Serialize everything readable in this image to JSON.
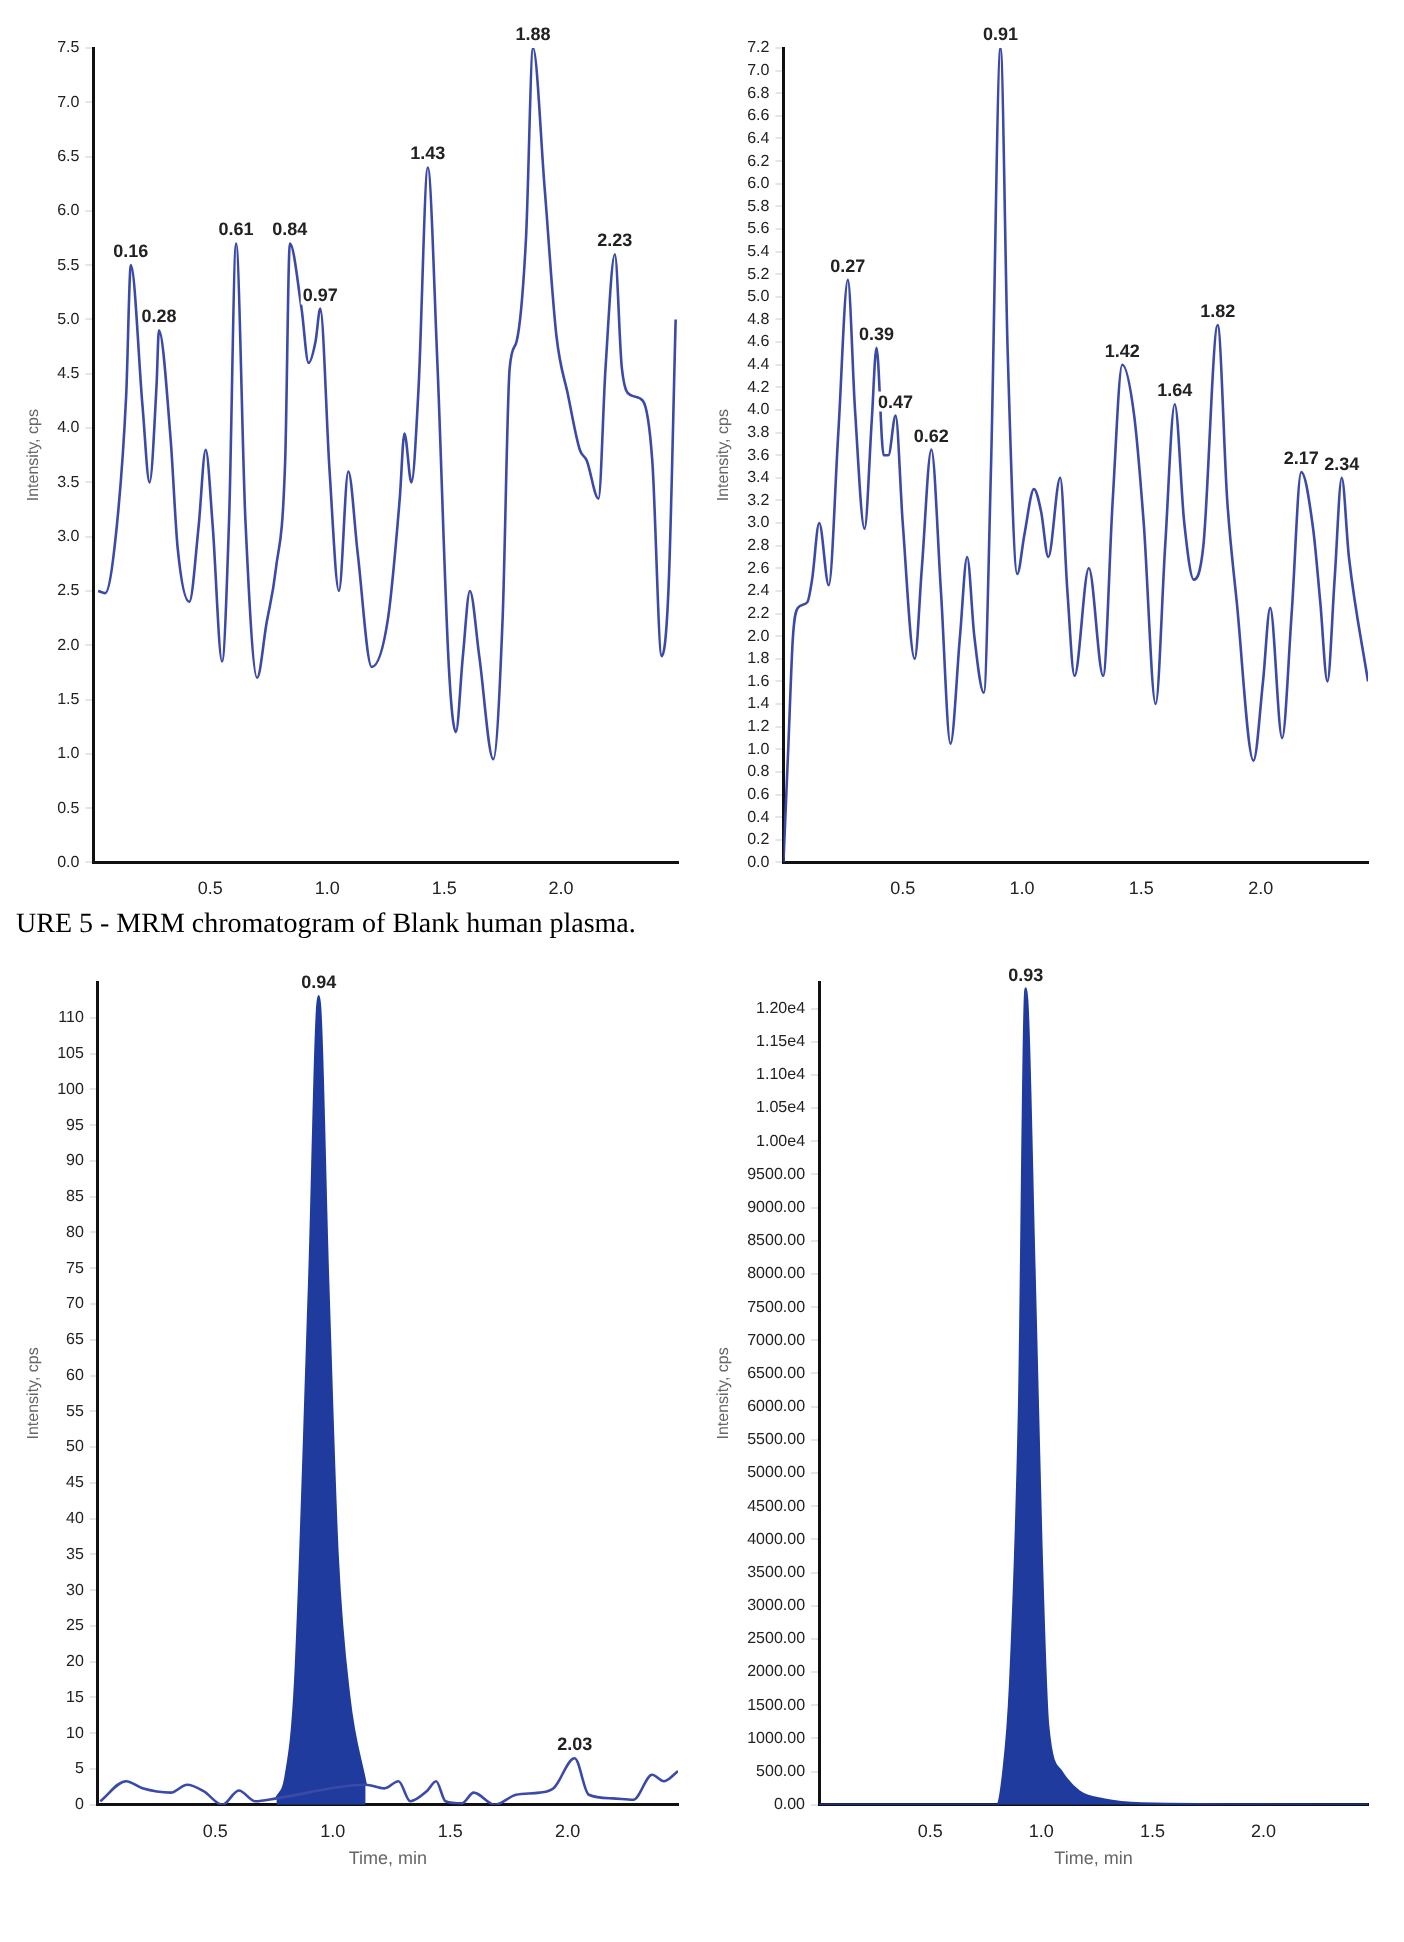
{
  "chart_data": [
    {
      "type": "line",
      "ylabel": "Intensity, cps",
      "xlim": [
        0,
        2.5
      ],
      "ylim": [
        0,
        7.5
      ],
      "grid": false,
      "legend": false,
      "marker": "none",
      "xticks": [
        {
          "value": 0.5,
          "label": "0.5"
        },
        {
          "value": 1,
          "label": "1.0"
        },
        {
          "value": 1.5,
          "label": "1.5"
        },
        {
          "value": 2,
          "label": "2.0"
        }
      ],
      "yticks": [
        {
          "value": 0,
          "label": "0.0"
        },
        {
          "value": 0.5,
          "label": "0.5"
        },
        {
          "value": 1,
          "label": "1.0"
        },
        {
          "value": 1.5,
          "label": "1.5"
        },
        {
          "value": 2,
          "label": "2.0"
        },
        {
          "value": 2.5,
          "label": "2.5"
        },
        {
          "value": 3,
          "label": "3.0"
        },
        {
          "value": 3.5,
          "label": "3.5"
        },
        {
          "value": 4,
          "label": "4.0"
        },
        {
          "value": 4.5,
          "label": "4.5"
        },
        {
          "value": 5,
          "label": "5.0"
        },
        {
          "value": 5.5,
          "label": "5.5"
        },
        {
          "value": 6,
          "label": "6.0"
        },
        {
          "value": 6.5,
          "label": "6.5"
        },
        {
          "value": 7,
          "label": "7.0"
        },
        {
          "value": 7.5,
          "label": "7.5"
        }
      ],
      "series": [
        {
          "color": "#3b4aa8",
          "x": [
            0.02,
            0.05,
            0.1,
            0.14,
            0.16,
            0.21,
            0.24,
            0.27,
            0.28,
            0.33,
            0.36,
            0.41,
            0.45,
            0.48,
            0.51,
            0.55,
            0.58,
            0.61,
            0.65,
            0.7,
            0.74,
            0.78,
            0.82,
            0.84,
            0.89,
            0.92,
            0.95,
            0.97,
            1.01,
            1.05,
            1.09,
            1.13,
            1.19,
            1.26,
            1.31,
            1.33,
            1.36,
            1.39,
            1.43,
            1.47,
            1.52,
            1.55,
            1.58,
            1.61,
            1.65,
            1.71,
            1.75,
            1.78,
            1.81,
            1.85,
            1.88,
            1.93,
            1.98,
            2.03,
            2.08,
            2.11,
            2.16,
            2.19,
            2.23,
            2.26,
            2.3,
            2.35,
            2.39,
            2.43,
            2.46,
            2.49
          ],
          "values": [
            2.5,
            2.48,
            3.1,
            4.3,
            5.5,
            4.2,
            3.5,
            4.4,
            4.9,
            3.9,
            2.9,
            2.4,
            3.1,
            3.8,
            3.1,
            1.85,
            3.15,
            5.7,
            3.15,
            1.7,
            2.2,
            2.7,
            3.7,
            5.7,
            5.1,
            4.6,
            4.8,
            5.1,
            3.6,
            2.5,
            3.6,
            2.85,
            1.8,
            2.25,
            3.35,
            3.95,
            3.5,
            4.35,
            6.4,
            4.65,
            1.8,
            1.2,
            1.9,
            2.5,
            1.9,
            0.95,
            2.25,
            4.55,
            4.8,
            5.75,
            7.5,
            6.2,
            4.85,
            4.3,
            3.8,
            3.7,
            3.35,
            4.55,
            5.6,
            4.55,
            4.3,
            4.25,
            3.7,
            1.9,
            2.55,
            5.0
          ]
        }
      ],
      "annotations": [
        {
          "text": "0.16",
          "x": 0.16,
          "y": 5.5
        },
        {
          "text": "0.28",
          "x": 0.28,
          "y": 4.9
        },
        {
          "text": "0.61",
          "x": 0.61,
          "y": 5.7
        },
        {
          "text": "0.84",
          "x": 0.84,
          "y": 5.7
        },
        {
          "text": "0.97",
          "x": 0.97,
          "y": 5.1
        },
        {
          "text": "1.43",
          "x": 1.43,
          "y": 6.4
        },
        {
          "text": "1.88",
          "x": 1.88,
          "y": 7.5
        },
        {
          "text": "2.23",
          "x": 2.23,
          "y": 5.6
        },
        "URE 5 - MRM chromatogram of Blank human plasma."
      ]
    },
    {
      "type": "line",
      "ylabel": "Intensity, cps",
      "xlim": [
        0,
        2.45
      ],
      "ylim": [
        0,
        7.2
      ],
      "grid": false,
      "legend": false,
      "marker": "none",
      "xticks": [
        {
          "value": 0.5,
          "label": "0.5"
        },
        {
          "value": 1,
          "label": "1.0"
        },
        {
          "value": 1.5,
          "label": "1.5"
        },
        {
          "value": 2,
          "label": "2.0"
        }
      ],
      "yticks": [
        {
          "value": 0,
          "label": "0.0"
        },
        {
          "value": 0.2,
          "label": "0.2"
        },
        {
          "value": 0.4,
          "label": "0.4"
        },
        {
          "value": 0.6,
          "label": "0.6"
        },
        {
          "value": 0.8,
          "label": "0.8"
        },
        {
          "value": 1,
          "label": "1.0"
        },
        {
          "value": 1.2,
          "label": "1.2"
        },
        {
          "value": 1.4,
          "label": "1.4"
        },
        {
          "value": 1.6,
          "label": "1.6"
        },
        {
          "value": 1.8,
          "label": "1.8"
        },
        {
          "value": 2,
          "label": "2.0"
        },
        {
          "value": 2.2,
          "label": "2.2"
        },
        {
          "value": 2.4,
          "label": "2.4"
        },
        {
          "value": 2.6,
          "label": "2.6"
        },
        {
          "value": 2.8,
          "label": "2.8"
        },
        {
          "value": 3,
          "label": "3.0"
        },
        {
          "value": 3.2,
          "label": "3.2"
        },
        {
          "value": 3.4,
          "label": "3.4"
        },
        {
          "value": 3.6,
          "label": "3.6"
        },
        {
          "value": 3.8,
          "label": "3.8"
        },
        {
          "value": 4,
          "label": "4.0"
        },
        {
          "value": 4.2,
          "label": "4.2"
        },
        {
          "value": 4.4,
          "label": "4.4"
        },
        {
          "value": 4.6,
          "label": "4.6"
        },
        {
          "value": 4.8,
          "label": "4.8"
        },
        {
          "value": 5,
          "label": "5.0"
        },
        {
          "value": 5.2,
          "label": "5.2"
        },
        {
          "value": 5.4,
          "label": "5.4"
        },
        {
          "value": 5.6,
          "label": "5.6"
        },
        {
          "value": 5.8,
          "label": "5.8"
        },
        {
          "value": 6,
          "label": "6.0"
        },
        {
          "value": 6.2,
          "label": "6.2"
        },
        {
          "value": 6.4,
          "label": "6.4"
        },
        {
          "value": 6.6,
          "label": "6.6"
        },
        {
          "value": 6.8,
          "label": "6.8"
        },
        {
          "value": 7,
          "label": "7.0"
        },
        {
          "value": 7.2,
          "label": "7.2"
        }
      ],
      "series": [
        {
          "color": "#3b4aa8",
          "x": [
            0.0,
            0.02,
            0.04,
            0.06,
            0.1,
            0.12,
            0.15,
            0.19,
            0.23,
            0.27,
            0.3,
            0.34,
            0.37,
            0.39,
            0.42,
            0.44,
            0.47,
            0.5,
            0.55,
            0.58,
            0.62,
            0.66,
            0.7,
            0.74,
            0.77,
            0.8,
            0.84,
            0.87,
            0.91,
            0.94,
            0.98,
            1.01,
            1.05,
            1.08,
            1.11,
            1.16,
            1.19,
            1.22,
            1.28,
            1.34,
            1.38,
            1.42,
            1.47,
            1.51,
            1.56,
            1.6,
            1.64,
            1.68,
            1.72,
            1.76,
            1.82,
            1.86,
            1.9,
            1.97,
            2.01,
            2.04,
            2.09,
            2.13,
            2.17,
            2.22,
            2.25,
            2.28,
            2.31,
            2.34,
            2.37,
            2.45
          ],
          "values": [
            0,
            1.0,
            2.0,
            2.25,
            2.3,
            2.5,
            3.0,
            2.45,
            3.8,
            5.15,
            4.0,
            2.95,
            3.9,
            4.55,
            3.6,
            3.6,
            3.95,
            3.0,
            1.8,
            2.6,
            3.65,
            2.4,
            1.05,
            2.0,
            2.7,
            2.0,
            1.5,
            3.5,
            7.2,
            4.5,
            2.55,
            2.9,
            3.3,
            3.1,
            2.7,
            3.4,
            2.4,
            1.65,
            2.6,
            1.65,
            3.2,
            4.4,
            3.95,
            3.0,
            1.4,
            2.8,
            4.05,
            3.0,
            2.5,
            2.8,
            4.75,
            3.2,
            2.3,
            0.9,
            1.6,
            2.25,
            1.1,
            2.2,
            3.45,
            2.95,
            2.3,
            1.6,
            2.5,
            3.4,
            2.7,
            1.6
          ]
        }
      ],
      "annotations": [
        {
          "text": "0.27",
          "x": 0.27,
          "y": 5.15
        },
        {
          "text": "0.39",
          "x": 0.39,
          "y": 4.55
        },
        {
          "text": "0.47",
          "x": 0.47,
          "y": 3.95
        },
        {
          "text": "0.62",
          "x": 0.62,
          "y": 3.65
        },
        {
          "text": "0.91",
          "x": 0.91,
          "y": 7.2
        },
        {
          "text": "1.42",
          "x": 1.42,
          "y": 4.4
        },
        {
          "text": "1.64",
          "x": 1.64,
          "y": 4.05
        },
        {
          "text": "1.82",
          "x": 1.82,
          "y": 4.75
        },
        {
          "text": "2.17",
          "x": 2.17,
          "y": 3.45
        },
        {
          "text": "2.34",
          "x": 2.34,
          "y": 3.4
        }
      ]
    },
    {
      "type": "line",
      "xlabel": "Time, min",
      "ylabel": "Intensity, cps",
      "xlim": [
        0,
        2.47
      ],
      "ylim": [
        0,
        115
      ],
      "grid": false,
      "legend": false,
      "marker": "none",
      "xticks": [
        {
          "value": 0.5,
          "label": "0.5"
        },
        {
          "value": 1,
          "label": "1.0"
        },
        {
          "value": 1.5,
          "label": "1.5"
        },
        {
          "value": 2,
          "label": "2.0"
        }
      ],
      "yticks": [
        0,
        5,
        10,
        15,
        20,
        25,
        30,
        35,
        40,
        45,
        50,
        55,
        60,
        65,
        70,
        75,
        80,
        85,
        90,
        95,
        100,
        105,
        110
      ],
      "series": [
        {
          "color": "#3b4aa8",
          "x": [
            0.01,
            0.12,
            0.19,
            0.31,
            0.38,
            0.45,
            0.53,
            0.6,
            0.67,
            0.76,
            1.14,
            1.22,
            1.28,
            1.33,
            1.4,
            1.44,
            1.48,
            1.55,
            1.6,
            1.69,
            1.78,
            1.88,
            1.94,
            2.03,
            2.09,
            2.19,
            2.28,
            2.36,
            2.41,
            2.47
          ],
          "values": [
            0.5,
            3.3,
            2.3,
            1.7,
            2.8,
            1.9,
            0,
            2.0,
            0.5,
            0.9,
            2.8,
            2.3,
            3.3,
            0.5,
            1.9,
            3.3,
            0.5,
            0.2,
            1.7,
            0,
            1.4,
            1.7,
            2.3,
            6.5,
            1.4,
            0.9,
            0.7,
            4.2,
            3.3,
            4.7
          ]
        },
        {
          "type": "area",
          "color": "#1f3b9e",
          "x": [
            0.76,
            0.8,
            0.84,
            0.9,
            0.94,
            0.98,
            1.02,
            1.07,
            1.14
          ],
          "values": [
            0.9,
            4,
            17,
            73,
            113,
            73,
            35,
            15,
            2.8
          ]
        }
      ],
      "annotations": [
        {
          "text": "0.94",
          "x": 0.94,
          "y": 113
        },
        {
          "text": "2.03",
          "x": 2.03,
          "y": 6.5
        }
      ]
    },
    {
      "type": "area",
      "xlabel": "Time, min",
      "ylabel": "Intensity, cps",
      "xlim": [
        0,
        2.47
      ],
      "ylim": [
        0,
        12400
      ],
      "grid": false,
      "legend": false,
      "marker": "none",
      "xticks": [
        {
          "value": 0.5,
          "label": "0.5"
        },
        {
          "value": 1,
          "label": "1.0"
        },
        {
          "value": 1.5,
          "label": "1.5"
        },
        {
          "value": 2,
          "label": "2.0"
        }
      ],
      "yticks": [
        {
          "value": 0,
          "label": "0.00"
        },
        {
          "value": 500,
          "label": "500.00"
        },
        {
          "value": 1000,
          "label": "1000.00"
        },
        {
          "value": 1500,
          "label": "1500.00"
        },
        {
          "value": 2000,
          "label": "2000.00"
        },
        {
          "value": 2500,
          "label": "2500.00"
        },
        {
          "value": 3000,
          "label": "3000.00"
        },
        {
          "value": 3500,
          "label": "3500.00"
        },
        {
          "value": 4000,
          "label": "4000.00"
        },
        {
          "value": 4500,
          "label": "4500.00"
        },
        {
          "value": 5000,
          "label": "5000.00"
        },
        {
          "value": 5500,
          "label": "5500.00"
        },
        {
          "value": 6000,
          "label": "6000.00"
        },
        {
          "value": 6500,
          "label": "6500.00"
        },
        {
          "value": 7000,
          "label": "7000.00"
        },
        {
          "value": 7500,
          "label": "7500.00"
        },
        {
          "value": 8000,
          "label": "8000.00"
        },
        {
          "value": 8500,
          "label": "8500.00"
        },
        {
          "value": 9000,
          "label": "9000.00"
        },
        {
          "value": 9500,
          "label": "9500.00"
        },
        {
          "value": 10000,
          "label": "1.00e4"
        },
        {
          "value": 10500,
          "label": "1.05e4"
        },
        {
          "value": 11000,
          "label": "1.10e4"
        },
        {
          "value": 11500,
          "label": "1.15e4"
        },
        {
          "value": 12000,
          "label": "1.20e4"
        }
      ],
      "series": [
        {
          "color": "#1f3b9e",
          "x": [
            0,
            0.5,
            0.8,
            0.83,
            0.86,
            0.9,
            0.93,
            0.97,
            1.0,
            1.03,
            1.09,
            1.17,
            1.28,
            1.45,
            2.47
          ],
          "values": [
            0,
            0,
            0,
            500,
            1800,
            5900,
            12300,
            7900,
            3900,
            1200,
            500,
            200,
            80,
            20,
            0
          ]
        }
      ],
      "annotations": [
        {
          "text": "0.93",
          "x": 0.93,
          "y": 12300
        }
      ]
    }
  ]
}
